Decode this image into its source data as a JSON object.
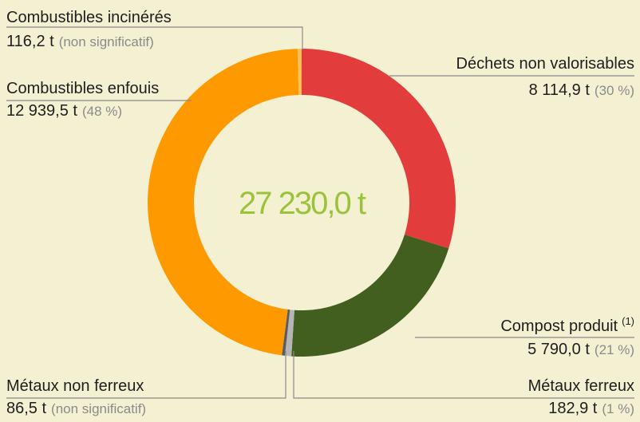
{
  "chart_data": {
    "type": "donut",
    "categories": [
      "Déchets non valorisables",
      "Compost produit",
      "Métaux ferreux",
      "Métaux non ferreux",
      "Combustibles enfouis",
      "Combustibles incinérés"
    ],
    "values": [
      8114.9,
      5790.0,
      182.9,
      86.5,
      12939.5,
      116.2
    ],
    "value_labels": [
      "8 114,9 t",
      "5 790,0 t",
      "182,9 t",
      "86,5 t",
      "12 939,5 t",
      "116,2 t"
    ],
    "share_labels": [
      "(30 %)",
      "(21 %)",
      "(1 %)",
      "(non significatif)",
      "(48 %)",
      "(non significatif)"
    ],
    "superscripts": [
      null,
      "(1)",
      null,
      null,
      null,
      null
    ],
    "colors": [
      "#e23c3c",
      "#435f1f",
      "#b5b5b5",
      "#5c5c5c",
      "#ff9900",
      "#ffbf5a"
    ],
    "center_label": "27 230,0 t"
  }
}
